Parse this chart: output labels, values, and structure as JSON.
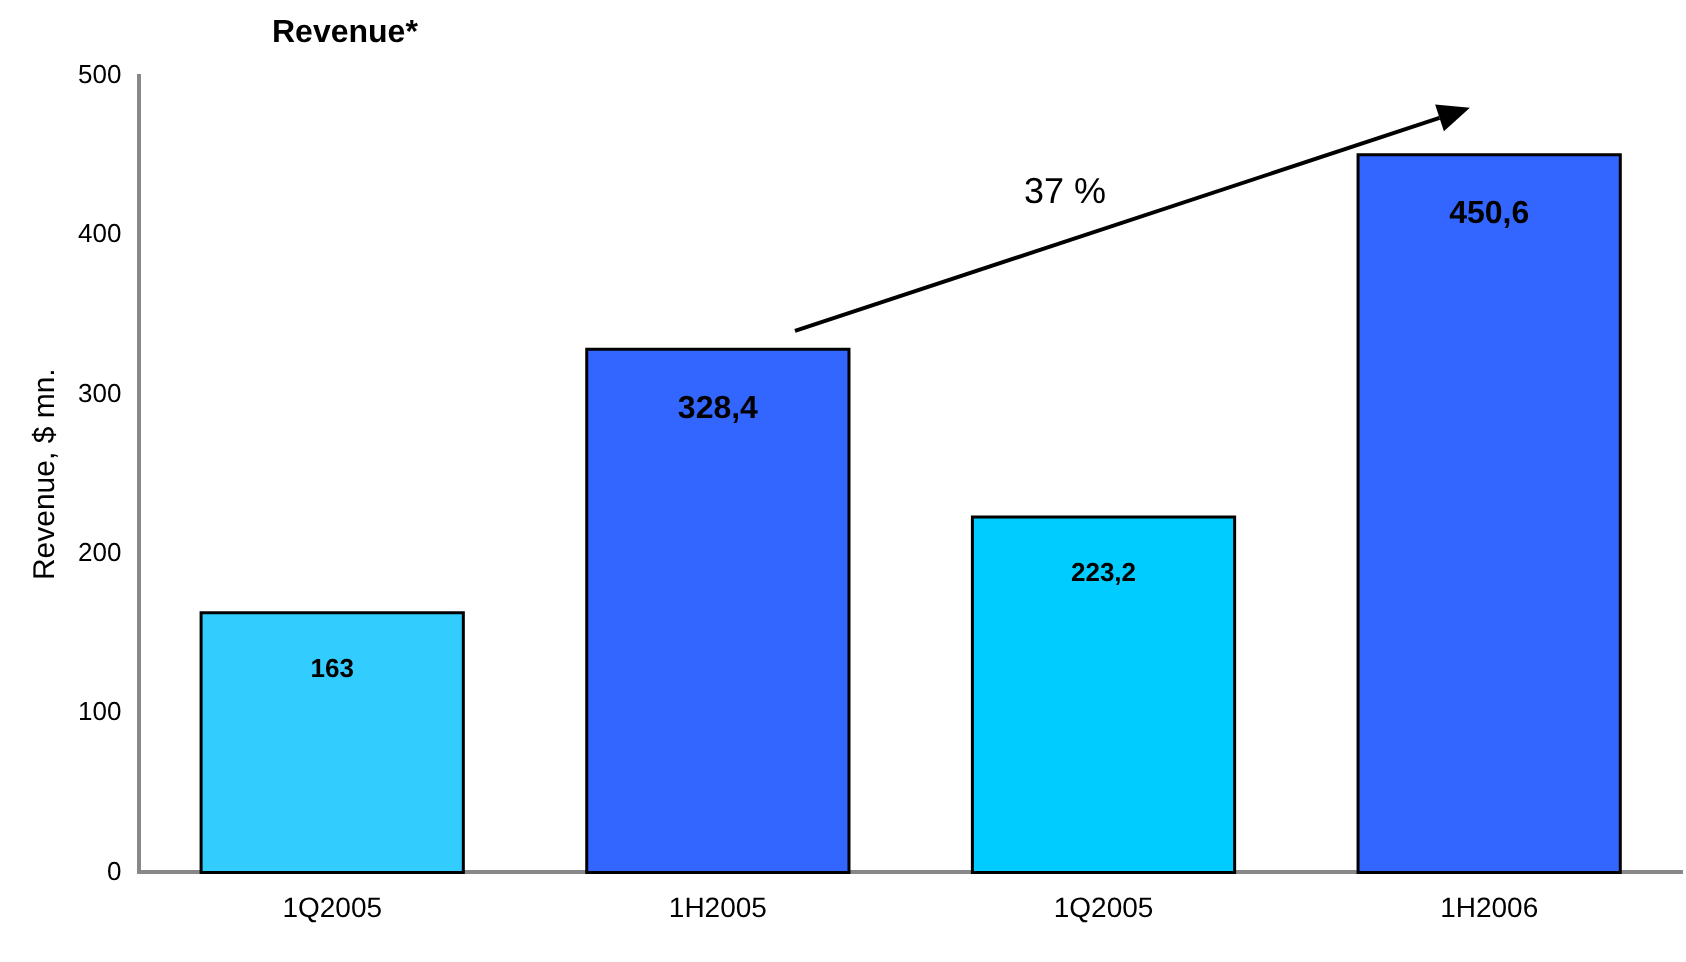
{
  "chart_data": {
    "type": "bar",
    "title": "Revenue*",
    "ylabel": "Revenue, $ mn.",
    "categories": [
      "1Q2005",
      "1H2005",
      "1Q2005",
      "1H2006"
    ],
    "values": [
      163,
      328.4,
      223.2,
      450.6
    ],
    "colors": [
      "#33ccff",
      "#3366ff",
      "#00ccff",
      "#3366ff"
    ],
    "value_labels": [
      "163",
      "328,4",
      "223,2",
      "450,6"
    ],
    "annotations": [
      "37 %"
    ],
    "ylim": [
      0,
      500
    ],
    "yticks": [
      0,
      100,
      200,
      300,
      400,
      500
    ],
    "grid": false,
    "legend": false
  }
}
